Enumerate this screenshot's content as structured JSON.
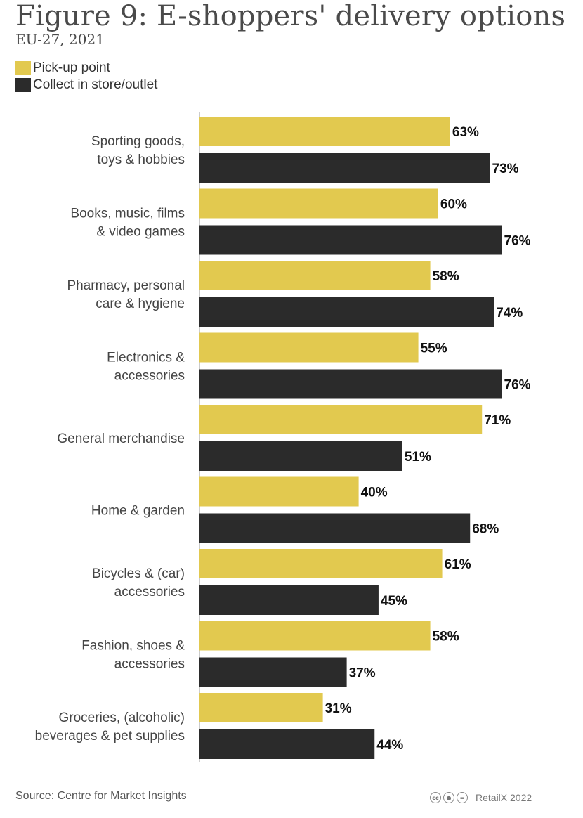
{
  "header": {
    "title": "Figure 9: E-shoppers' delivery options",
    "subtitle": "EU-27, 2021"
  },
  "legend": [
    {
      "label": "Pick-up point",
      "color": "#e2c94f"
    },
    {
      "label": "Collect in store/outlet",
      "color": "#2b2b2b"
    }
  ],
  "chart_data": {
    "type": "bar",
    "orientation": "horizontal",
    "categories": [
      [
        "Sporting goods,",
        "toys & hobbies"
      ],
      [
        "Books, music, films",
        "& video games"
      ],
      [
        "Pharmacy, personal",
        "care & hygiene"
      ],
      [
        "Electronics &",
        "accessories"
      ],
      [
        "General merchandise"
      ],
      [
        "Home & garden"
      ],
      [
        "Bicycles & (car)",
        "accessories"
      ],
      [
        "Fashion, shoes &",
        "accessories"
      ],
      [
        "Groceries, (alcoholic)",
        "beverages & pet supplies"
      ]
    ],
    "series": [
      {
        "name": "Pick-up point",
        "color": "#e2c94f",
        "values": [
          63,
          60,
          58,
          55,
          71,
          40,
          61,
          58,
          31
        ]
      },
      {
        "name": "Collect in store/outlet",
        "color": "#2b2b2b",
        "values": [
          73,
          76,
          74,
          76,
          51,
          68,
          45,
          37,
          44
        ]
      }
    ],
    "value_suffix": "%",
    "xlim": [
      0,
      100
    ],
    "grid": false,
    "legend_position": "top-left"
  },
  "footer": {
    "source": "Source: Centre for Market Insights",
    "credit": "RetailX 2022",
    "license_icons": [
      "cc-icon",
      "by-icon",
      "nd-icon"
    ]
  }
}
